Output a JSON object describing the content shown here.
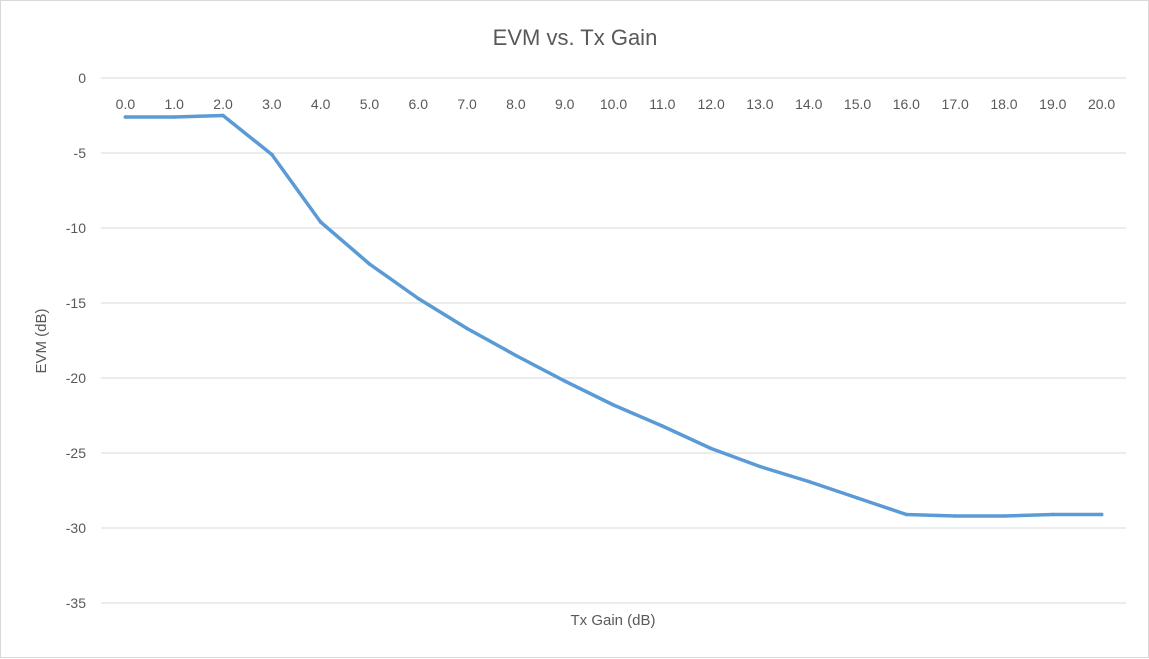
{
  "chart_data": {
    "type": "line",
    "title": "EVM vs. Tx Gain",
    "xlabel": "Tx Gain (dB)",
    "ylabel": "EVM (dB)",
    "categories": [
      "0.0",
      "1.0",
      "2.0",
      "3.0",
      "4.0",
      "5.0",
      "6.0",
      "7.0",
      "8.0",
      "9.0",
      "10.0",
      "11.0",
      "12.0",
      "13.0",
      "14.0",
      "15.0",
      "16.0",
      "17.0",
      "18.0",
      "19.0",
      "20.0"
    ],
    "y_ticks": [
      "0",
      "-5",
      "-10",
      "-15",
      "-20",
      "-25",
      "-30",
      "-35"
    ],
    "ylim": [
      -35,
      0
    ],
    "grid": true,
    "x_tick_position": "top",
    "series": [
      {
        "values": [
          -2.6,
          -2.6,
          -2.5,
          -5.1,
          -9.6,
          -12.4,
          -14.7,
          -16.7,
          -18.5,
          -20.2,
          -21.8,
          -23.2,
          -24.7,
          -25.9,
          -26.9,
          -28.0,
          -29.1,
          -29.2,
          -29.2,
          -29.1,
          -29.1
        ],
        "color": "#5b9bd5"
      }
    ]
  }
}
